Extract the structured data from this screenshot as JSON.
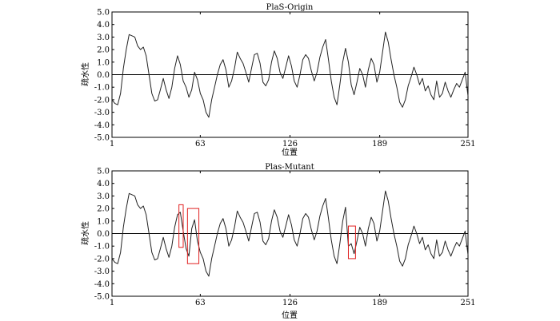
{
  "chart_data": [
    {
      "type": "line",
      "title": "PlaS-Origin",
      "xlabel": "位置",
      "ylabel": "疏水性",
      "xlim": [
        1,
        251
      ],
      "ylim": [
        -5.0,
        5.0
      ],
      "xticks": [
        1,
        63,
        126,
        189,
        251
      ],
      "yticks": [
        "5.0",
        "4.0",
        "3.0",
        "2.0",
        "1.0",
        "0.0",
        "-1.0",
        "-2.0",
        "-3.0",
        "-4.0",
        "-5.0"
      ],
      "baseline": 0.0,
      "series": [
        {
          "x": [
            1,
            3,
            5,
            7,
            9,
            11,
            13,
            15,
            17,
            19,
            21,
            23,
            25,
            27,
            29,
            31,
            33,
            35,
            37,
            39,
            41,
            43,
            45,
            47,
            49,
            51,
            53,
            55,
            57,
            59,
            61,
            63,
            65,
            67,
            69,
            71,
            73,
            75,
            77,
            79,
            81,
            83,
            85,
            87,
            89,
            91,
            93,
            95,
            97,
            99,
            101,
            103,
            105,
            107,
            109,
            111,
            113,
            115,
            117,
            119,
            121,
            123,
            125,
            127,
            129,
            131,
            133,
            135,
            137,
            139,
            141,
            143,
            145,
            147,
            149,
            151,
            153,
            155,
            157,
            159,
            161,
            163,
            165,
            167,
            169,
            171,
            173,
            175,
            177,
            179,
            181,
            183,
            185,
            187,
            189,
            191,
            193,
            195,
            197,
            199,
            201,
            203,
            205,
            207,
            209,
            211,
            213,
            215,
            217,
            219,
            221,
            223,
            225,
            227,
            229,
            231,
            233,
            235,
            237,
            239,
            241,
            243,
            245,
            247,
            249,
            251
          ],
          "values": [
            -2.0,
            -2.3,
            -2.4,
            -1.5,
            0.5,
            2.0,
            3.2,
            3.1,
            3.0,
            2.3,
            2.0,
            2.2,
            1.5,
            0.0,
            -1.5,
            -2.1,
            -2.0,
            -1.2,
            -0.3,
            -1.2,
            -1.9,
            -1.0,
            0.5,
            1.5,
            0.8,
            -0.5,
            -1.0,
            -1.8,
            -1.2,
            0.2,
            -0.4,
            -1.5,
            -2.0,
            -3.0,
            -3.4,
            -2.0,
            -1.0,
            0.0,
            0.8,
            1.2,
            0.4,
            -1.0,
            -0.5,
            0.5,
            1.8,
            1.3,
            0.9,
            0.2,
            -0.6,
            0.5,
            1.6,
            1.7,
            0.9,
            -0.6,
            -0.9,
            -0.4,
            1.0,
            1.9,
            1.3,
            0.2,
            -0.3,
            0.6,
            1.5,
            0.7,
            -0.5,
            -1.0,
            0.0,
            1.2,
            1.6,
            1.3,
            0.3,
            -0.5,
            0.2,
            1.4,
            2.2,
            2.8,
            1.2,
            -0.5,
            -1.8,
            -2.4,
            -0.8,
            1.0,
            2.1,
            1.0,
            -0.8,
            -1.6,
            -0.6,
            0.5,
            0.0,
            -1.0,
            0.4,
            1.3,
            0.8,
            -0.6,
            0.2,
            1.8,
            3.4,
            2.6,
            1.2,
            0.0,
            -1.0,
            -2.2,
            -2.6,
            -2.0,
            -0.9,
            -0.2,
            0.6,
            0.0,
            -0.8,
            -0.3,
            -1.3,
            -0.9,
            -1.6,
            -2.0,
            -0.5,
            -1.8,
            -1.5,
            -0.6,
            -1.3,
            -1.8,
            -1.2,
            -0.7,
            -1.0,
            -0.4,
            0.2,
            -1.7
          ]
        }
      ]
    },
    {
      "type": "line",
      "title": "Plas-Mutant",
      "xlabel": "位置",
      "ylabel": "疏水性",
      "xlim": [
        1,
        251
      ],
      "ylim": [
        -5.0,
        5.0
      ],
      "xticks": [
        1,
        63,
        126,
        189,
        251
      ],
      "yticks": [
        "5.0",
        "4.0",
        "3.0",
        "2.0",
        "1.0",
        "0.0",
        "-1.0",
        "-2.0",
        "-3.0",
        "-4.0",
        "-5.0"
      ],
      "baseline": 0.0,
      "series": [
        {
          "x": [
            1,
            3,
            5,
            7,
            9,
            11,
            13,
            15,
            17,
            19,
            21,
            23,
            25,
            27,
            29,
            31,
            33,
            35,
            37,
            39,
            41,
            43,
            45,
            47,
            49,
            51,
            53,
            55,
            57,
            59,
            61,
            63,
            65,
            67,
            69,
            71,
            73,
            75,
            77,
            79,
            81,
            83,
            85,
            87,
            89,
            91,
            93,
            95,
            97,
            99,
            101,
            103,
            105,
            107,
            109,
            111,
            113,
            115,
            117,
            119,
            121,
            123,
            125,
            127,
            129,
            131,
            133,
            135,
            137,
            139,
            141,
            143,
            145,
            147,
            149,
            151,
            153,
            155,
            157,
            159,
            161,
            163,
            165,
            167,
            169,
            171,
            173,
            175,
            177,
            179,
            181,
            183,
            185,
            187,
            189,
            191,
            193,
            195,
            197,
            199,
            201,
            203,
            205,
            207,
            209,
            211,
            213,
            215,
            217,
            219,
            221,
            223,
            225,
            227,
            229,
            231,
            233,
            235,
            237,
            239,
            241,
            243,
            245,
            247,
            249,
            251
          ],
          "values": [
            -2.0,
            -2.3,
            -2.4,
            -1.5,
            0.5,
            2.0,
            3.2,
            3.1,
            3.0,
            2.3,
            2.0,
            2.2,
            1.5,
            0.0,
            -1.5,
            -2.1,
            -2.0,
            -1.2,
            -0.3,
            -1.2,
            -1.9,
            -1.0,
            0.5,
            1.5,
            1.7,
            0.2,
            -1.2,
            -1.8,
            0.4,
            1.1,
            -0.6,
            -1.5,
            -2.0,
            -3.0,
            -3.4,
            -2.0,
            -1.0,
            0.0,
            0.8,
            1.2,
            0.4,
            -1.0,
            -0.5,
            0.5,
            1.8,
            1.3,
            0.9,
            0.2,
            -0.6,
            0.5,
            1.6,
            1.7,
            0.9,
            -0.6,
            -0.9,
            -0.4,
            1.0,
            1.9,
            1.3,
            0.2,
            -0.3,
            0.6,
            1.5,
            0.7,
            -0.5,
            -1.0,
            0.0,
            1.2,
            1.6,
            1.3,
            0.3,
            -0.5,
            0.2,
            1.4,
            2.2,
            2.8,
            1.2,
            -0.5,
            -1.8,
            -2.4,
            -0.8,
            1.0,
            2.1,
            -1.0,
            -0.8,
            -1.6,
            -0.6,
            0.5,
            0.0,
            -1.0,
            0.4,
            1.3,
            0.8,
            -0.6,
            0.2,
            1.8,
            3.4,
            2.6,
            1.2,
            0.0,
            -1.0,
            -2.2,
            -2.6,
            -2.0,
            -0.9,
            -0.2,
            0.6,
            0.0,
            -0.8,
            -0.3,
            -1.3,
            -0.9,
            -1.6,
            -2.0,
            -0.5,
            -1.8,
            -1.5,
            -0.6,
            -1.3,
            -1.8,
            -1.2,
            -0.7,
            -1.0,
            -0.4,
            0.2,
            -1.7
          ]
        }
      ],
      "annotations": [
        {
          "type": "rect",
          "x": [
            48,
            51
          ],
          "y": [
            -1.1,
            2.3
          ],
          "color": "#e02020"
        },
        {
          "type": "rect",
          "x": [
            54,
            62
          ],
          "y": [
            -2.4,
            2.0
          ],
          "color": "#e02020"
        },
        {
          "type": "rect",
          "x": [
            167,
            172
          ],
          "y": [
            -2.0,
            0.6
          ],
          "color": "#e02020"
        }
      ]
    }
  ],
  "colors": {
    "line": "#222222",
    "axis": "#000000",
    "highlight": "#e02020"
  }
}
